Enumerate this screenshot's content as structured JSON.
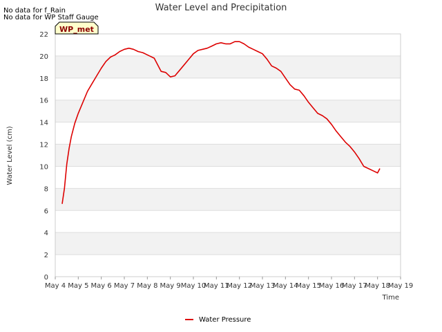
{
  "chart_data": {
    "type": "line",
    "title": "Water Level and Precipitation",
    "notes": [
      "No data for f_Rain",
      "No data for WP Staff Gauge"
    ],
    "site_label": "WP_met",
    "xlabel": "Time",
    "ylabel": "Water Level (cm)",
    "x_ticks": [
      "May 4",
      "May 5",
      "May 6",
      "May 7",
      "May 8",
      "May 9",
      "May 10",
      "May 11",
      "May 12",
      "May 13",
      "May 14",
      "May 15",
      "May 16",
      "May 17",
      "May 18",
      "May 19"
    ],
    "xlim": [
      0,
      15
    ],
    "ylim": [
      0,
      22
    ],
    "y_ticks": [
      0,
      2,
      4,
      6,
      8,
      10,
      12,
      14,
      16,
      18,
      20,
      22
    ],
    "grid": "horizontal bands",
    "legend_position": "bottom-center",
    "colors": {
      "series": "#dd0000",
      "band": "#f2f2f2",
      "grid": "#dddddd",
      "site_box": "#ffffcc"
    },
    "series": [
      {
        "name": "Water Pressure",
        "x": [
          0.3,
          0.4,
          0.5,
          0.6,
          0.7,
          0.85,
          1.0,
          1.2,
          1.4,
          1.6,
          1.8,
          2.0,
          2.2,
          2.4,
          2.6,
          2.8,
          3.0,
          3.2,
          3.4,
          3.6,
          3.8,
          4.0,
          4.3,
          4.6,
          4.8,
          5.0,
          5.2,
          5.4,
          5.6,
          5.8,
          6.0,
          6.2,
          6.4,
          6.6,
          6.8,
          7.0,
          7.2,
          7.4,
          7.6,
          7.8,
          8.0,
          8.2,
          8.4,
          8.6,
          8.8,
          9.0,
          9.2,
          9.4,
          9.6,
          9.8,
          10.0,
          10.2,
          10.4,
          10.6,
          10.8,
          11.0,
          11.2,
          11.4,
          11.6,
          11.8,
          12.0,
          12.2,
          12.4,
          12.6,
          12.8,
          13.0,
          13.2,
          13.4,
          13.6,
          13.8,
          14.0,
          14.1
        ],
        "y": [
          6.6,
          8.0,
          10.2,
          11.6,
          12.7,
          13.9,
          14.8,
          15.8,
          16.8,
          17.5,
          18.2,
          18.9,
          19.5,
          19.9,
          20.1,
          20.4,
          20.6,
          20.7,
          20.6,
          20.4,
          20.3,
          20.1,
          19.8,
          18.6,
          18.5,
          18.1,
          18.2,
          18.7,
          19.2,
          19.7,
          20.2,
          20.5,
          20.6,
          20.7,
          20.9,
          21.1,
          21.2,
          21.1,
          21.1,
          21.3,
          21.3,
          21.1,
          20.8,
          20.6,
          20.4,
          20.2,
          19.7,
          19.1,
          18.9,
          18.6,
          18.0,
          17.4,
          17.0,
          16.9,
          16.4,
          15.8,
          15.3,
          14.8,
          14.6,
          14.3,
          13.8,
          13.2,
          12.7,
          12.2,
          11.8,
          11.3,
          10.7,
          10.0,
          9.8,
          9.6,
          9.4,
          9.8
        ]
      }
    ]
  }
}
